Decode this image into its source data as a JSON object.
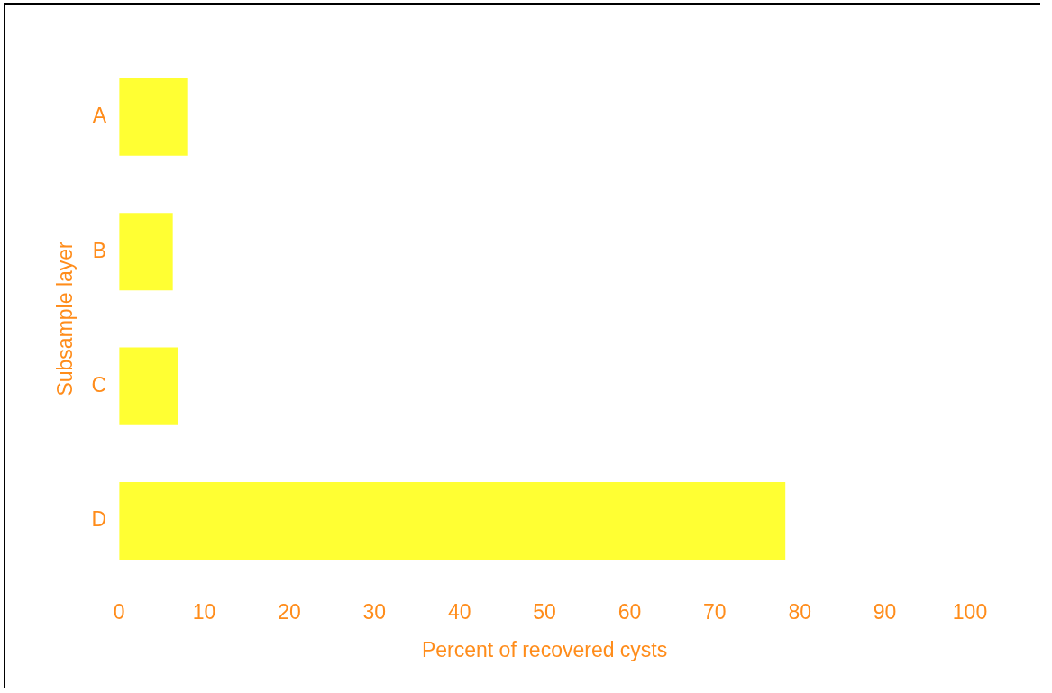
{
  "chart_data": {
    "type": "bar",
    "orientation": "horizontal",
    "categories": [
      "A",
      "B",
      "C",
      "D"
    ],
    "values": [
      8,
      6.3,
      6.9,
      78.3
    ],
    "color": "#ffff33",
    "xlabel": "Percent of recovered cysts",
    "ylabel": "Subsample layer",
    "xlim": [
      0,
      100
    ],
    "xticks": [
      0,
      10,
      20,
      30,
      40,
      50,
      60,
      70,
      80,
      90,
      100
    ],
    "grid": false,
    "legend": false
  }
}
